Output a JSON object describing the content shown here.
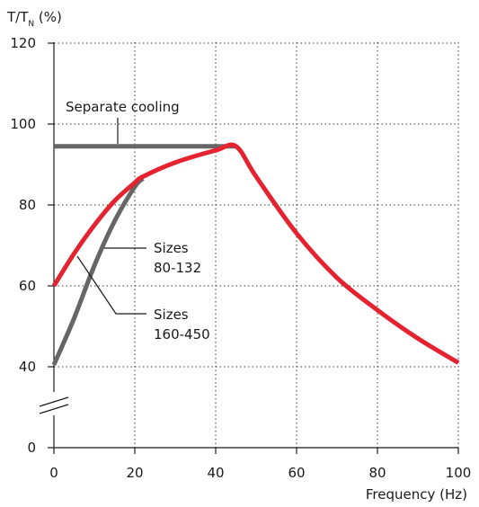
{
  "chart_data": {
    "type": "line",
    "ylabel": {
      "main": "T/T",
      "sub": "N",
      "unit": " (%)"
    },
    "xlabel": "Frequency (Hz)",
    "xlim": [
      0,
      100
    ],
    "ylim": [
      0,
      120
    ],
    "y_axis_break": {
      "between": [
        0,
        40
      ]
    },
    "x_ticks": [
      "0",
      "20",
      "40",
      "60",
      "80",
      "100"
    ],
    "y_ticks": [
      "0",
      "40",
      "60",
      "80",
      "100",
      "120"
    ],
    "grid": true,
    "colors": {
      "red": "#e52230",
      "gray": "#666666"
    },
    "series": [
      {
        "name": "Separate cooling",
        "color": "#666666",
        "points": [
          [
            0,
            94.5
          ],
          [
            45,
            94.5
          ]
        ]
      },
      {
        "name": "Sizes 80-132",
        "color": "#666666",
        "points": [
          [
            0,
            40.5
          ],
          [
            5,
            52
          ],
          [
            10,
            65
          ],
          [
            15,
            76
          ],
          [
            20,
            84.5
          ],
          [
            22,
            86.5
          ]
        ]
      },
      {
        "name": "Sizes 160-450",
        "color": "#e52230",
        "points": [
          [
            0,
            60
          ],
          [
            5,
            68
          ],
          [
            10,
            75
          ],
          [
            15,
            81
          ],
          [
            20,
            85.5
          ],
          [
            22,
            87
          ],
          [
            30,
            90.5
          ],
          [
            40,
            93.5
          ],
          [
            45,
            94.5
          ],
          [
            50,
            87
          ],
          [
            60,
            73
          ],
          [
            70,
            62
          ],
          [
            80,
            54
          ],
          [
            90,
            47
          ],
          [
            100,
            41
          ]
        ]
      }
    ],
    "annotations": [
      {
        "text": "Separate cooling"
      },
      {
        "lines": [
          "Sizes",
          "80-132"
        ]
      },
      {
        "lines": [
          "Sizes",
          "160-450"
        ]
      }
    ]
  }
}
